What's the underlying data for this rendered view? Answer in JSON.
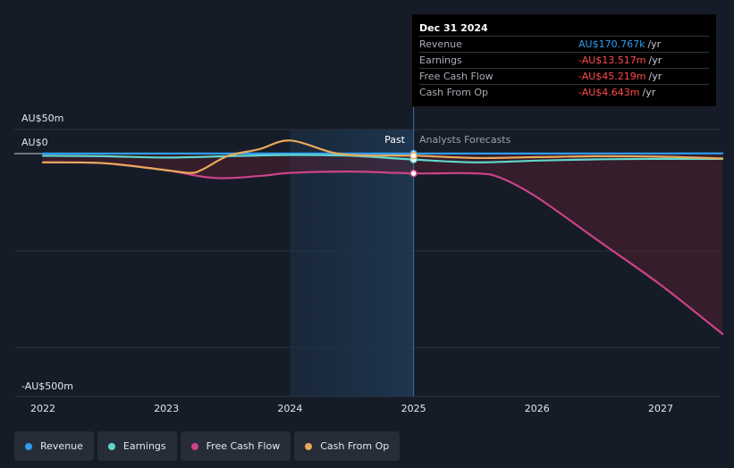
{
  "chart_data": {
    "type": "line",
    "y_labels": {
      "top": "AU$50m",
      "zero": "AU$0",
      "bottom": "-AU$500m"
    },
    "ylim": [
      -500,
      50
    ],
    "xlim": [
      2021.8,
      2027.5
    ],
    "x_ticks": [
      "2022",
      "2023",
      "2024",
      "2025",
      "2026",
      "2027"
    ],
    "x_tick_values": [
      2022,
      2023,
      2024,
      2025,
      2026,
      2027
    ],
    "past_label": "Past",
    "forecast_label": "Analysts Forecasts",
    "divider_x": 2025.0,
    "highlight_start_x": 2024.0,
    "series": [
      {
        "name": "Revenue",
        "color": "#2f9cf2",
        "points": [
          [
            2022.0,
            0.2
          ],
          [
            2023.0,
            0.2
          ],
          [
            2024.0,
            0.2
          ],
          [
            2025.0,
            0.17
          ],
          [
            2026.0,
            0.3
          ],
          [
            2027.0,
            0.5
          ],
          [
            2027.5,
            0.6
          ]
        ]
      },
      {
        "name": "Earnings",
        "color": "#5fd8cc",
        "points": [
          [
            2022.0,
            -5
          ],
          [
            2022.5,
            -6
          ],
          [
            2023.0,
            -9
          ],
          [
            2023.5,
            -6
          ],
          [
            2024.0,
            -3
          ],
          [
            2024.5,
            -5
          ],
          [
            2025.0,
            -13.5
          ],
          [
            2025.5,
            -20
          ],
          [
            2026.0,
            -16
          ],
          [
            2026.5,
            -13
          ],
          [
            2027.0,
            -12
          ],
          [
            2027.5,
            -12
          ]
        ]
      },
      {
        "name": "Free Cash Flow",
        "color": "#cc4389",
        "points": [
          [
            2022.0,
            -20
          ],
          [
            2022.5,
            -22
          ],
          [
            2023.0,
            -38
          ],
          [
            2023.3,
            -53
          ],
          [
            2023.5,
            -56
          ],
          [
            2023.8,
            -50
          ],
          [
            2024.0,
            -44
          ],
          [
            2024.5,
            -41
          ],
          [
            2025.0,
            -45.2
          ],
          [
            2025.5,
            -45
          ],
          [
            2025.7,
            -55
          ],
          [
            2026.0,
            -100
          ],
          [
            2026.5,
            -200
          ],
          [
            2027.0,
            -300
          ],
          [
            2027.5,
            -412
          ]
        ]
      },
      {
        "name": "Cash From Op",
        "color": "#e8a95b",
        "points": [
          [
            2022.0,
            -20
          ],
          [
            2022.5,
            -22
          ],
          [
            2023.0,
            -38
          ],
          [
            2023.2,
            -44
          ],
          [
            2023.3,
            -35
          ],
          [
            2023.5,
            -5
          ],
          [
            2023.75,
            10
          ],
          [
            2024.0,
            30
          ],
          [
            2024.35,
            2
          ],
          [
            2024.6,
            -4
          ],
          [
            2025.0,
            -4.6
          ],
          [
            2025.5,
            -10
          ],
          [
            2026.0,
            -8
          ],
          [
            2026.5,
            -6
          ],
          [
            2027.0,
            -7
          ],
          [
            2027.5,
            -11
          ]
        ]
      }
    ]
  },
  "tooltip": {
    "date": "Dec 31 2024",
    "rows": [
      {
        "label": "Revenue",
        "value": "AU$170.767k",
        "unit": "/yr",
        "color": "#2f9cf2"
      },
      {
        "label": "Earnings",
        "value": "-AU$13.517m",
        "unit": "/yr",
        "color": "#ff4b4b"
      },
      {
        "label": "Free Cash Flow",
        "value": "-AU$45.219m",
        "unit": "/yr",
        "color": "#ff4b4b"
      },
      {
        "label": "Cash From Op",
        "value": "-AU$4.643m",
        "unit": "/yr",
        "color": "#ff4b4b"
      }
    ]
  },
  "legend": [
    {
      "label": "Revenue",
      "color": "#2f9cf2"
    },
    {
      "label": "Earnings",
      "color": "#5fd8cc"
    },
    {
      "label": "Free Cash Flow",
      "color": "#cc4389"
    },
    {
      "label": "Cash From Op",
      "color": "#e8a95b"
    }
  ]
}
